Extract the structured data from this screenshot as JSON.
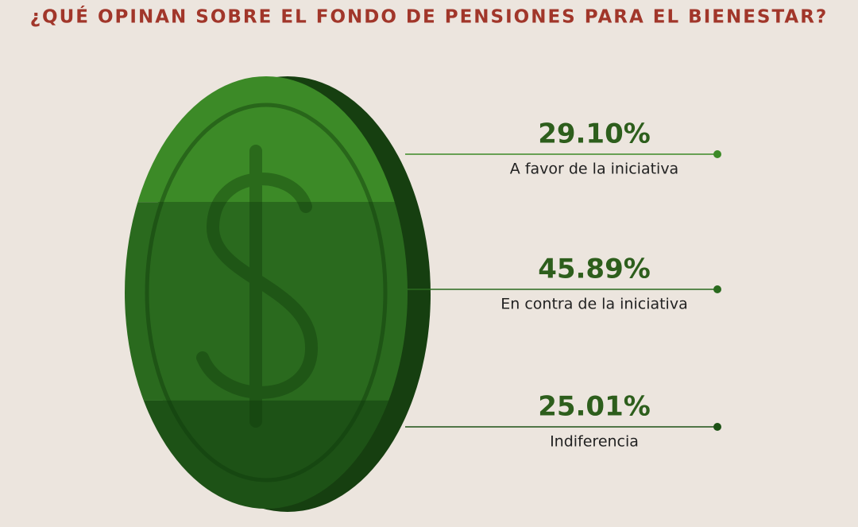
{
  "chart_data": {
    "type": "coin",
    "title": "¿QUÉ OPINAN SOBRE EL FONDO DE PENSIONES PARA EL BIENESTAR?",
    "categories": [
      "A favor de la iniciativa",
      "En contra de la iniciativa",
      "Indiferencia"
    ],
    "values": [
      29.1,
      45.89,
      25.01
    ],
    "value_labels": [
      "29.10%",
      "45.89%",
      "25.01%"
    ],
    "colors": [
      "#3c8a27",
      "#2a6a1e",
      "#1d5216"
    ]
  }
}
